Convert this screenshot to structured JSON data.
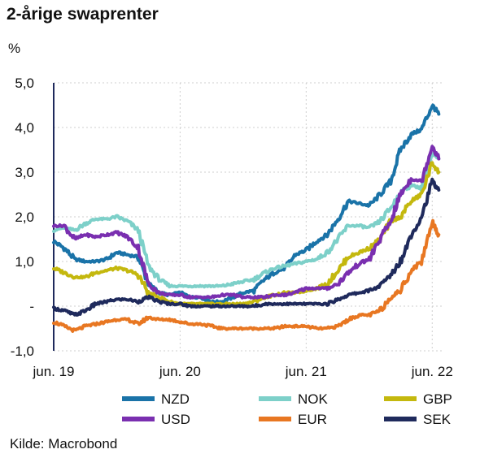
{
  "title": "2-årige swaprenter",
  "source": "Kilde: Macrobond",
  "chart_data": {
    "type": "line",
    "title": "2-årige swaprenter",
    "ylabel": "%",
    "ylim": [
      -1.0,
      5.0
    ],
    "y_ticks": [
      {
        "value": 5.0,
        "label": "5,0"
      },
      {
        "value": 4.0,
        "label": "4,0"
      },
      {
        "value": 3.0,
        "label": "3,0"
      },
      {
        "value": 2.0,
        "label": "2,0"
      },
      {
        "value": 1.0,
        "label": "1,0"
      },
      {
        "value": 0.0,
        "label": "-"
      },
      {
        "value": -1.0,
        "label": "-1,0"
      }
    ],
    "xlim": [
      "2019-06",
      "2022-07"
    ],
    "x_ticks": [
      "jun. 19",
      "jun. 20",
      "jun. 21",
      "jun. 22"
    ],
    "x_tick_dates": [
      "2019-06",
      "2020-06",
      "2021-06",
      "2022-06"
    ],
    "legend_position": "bottom",
    "series": [
      {
        "name": "NZD",
        "color": "#1a73a8",
        "points": [
          [
            "2019-06",
            1.45
          ],
          [
            "2019-07",
            1.3
          ],
          [
            "2019-08",
            1.05
          ],
          [
            "2019-09",
            1.0
          ],
          [
            "2019-10",
            1.0
          ],
          [
            "2019-11",
            1.05
          ],
          [
            "2019-12",
            1.2
          ],
          [
            "2020-01",
            1.15
          ],
          [
            "2020-02",
            1.1
          ],
          [
            "2020-03",
            0.5
          ],
          [
            "2020-04",
            0.3
          ],
          [
            "2020-05",
            0.25
          ],
          [
            "2020-06",
            0.3
          ],
          [
            "2020-07",
            0.2
          ],
          [
            "2020-08",
            0.2
          ],
          [
            "2020-09",
            0.1
          ],
          [
            "2020-10",
            0.1
          ],
          [
            "2020-11",
            0.2
          ],
          [
            "2020-12",
            0.3
          ],
          [
            "2021-01",
            0.35
          ],
          [
            "2021-02",
            0.6
          ],
          [
            "2021-03",
            0.75
          ],
          [
            "2021-04",
            0.85
          ],
          [
            "2021-05",
            1.15
          ],
          [
            "2021-06",
            1.25
          ],
          [
            "2021-07",
            1.45
          ],
          [
            "2021-08",
            1.6
          ],
          [
            "2021-09",
            1.95
          ],
          [
            "2021-10",
            2.35
          ],
          [
            "2021-11",
            2.3
          ],
          [
            "2021-12",
            2.25
          ],
          [
            "2022-01",
            2.5
          ],
          [
            "2022-02",
            2.8
          ],
          [
            "2022-03",
            3.5
          ],
          [
            "2022-04",
            3.85
          ],
          [
            "2022-05",
            3.95
          ],
          [
            "2022-06",
            4.5
          ],
          [
            "2022-06-20",
            4.3
          ]
        ]
      },
      {
        "name": "NOK",
        "color": "#7dd0c9",
        "points": [
          [
            "2019-06",
            1.7
          ],
          [
            "2019-07",
            1.75
          ],
          [
            "2019-08",
            1.7
          ],
          [
            "2019-09",
            1.85
          ],
          [
            "2019-10",
            1.95
          ],
          [
            "2019-11",
            1.95
          ],
          [
            "2019-12",
            2.0
          ],
          [
            "2020-01",
            1.9
          ],
          [
            "2020-02",
            1.7
          ],
          [
            "2020-03",
            0.9
          ],
          [
            "2020-04",
            0.6
          ],
          [
            "2020-05",
            0.45
          ],
          [
            "2020-06",
            0.45
          ],
          [
            "2020-07",
            0.45
          ],
          [
            "2020-08",
            0.45
          ],
          [
            "2020-09",
            0.45
          ],
          [
            "2020-10",
            0.45
          ],
          [
            "2020-11",
            0.5
          ],
          [
            "2020-12",
            0.55
          ],
          [
            "2021-01",
            0.6
          ],
          [
            "2021-02",
            0.75
          ],
          [
            "2021-03",
            0.85
          ],
          [
            "2021-04",
            0.9
          ],
          [
            "2021-05",
            0.95
          ],
          [
            "2021-06",
            1.0
          ],
          [
            "2021-07",
            1.05
          ],
          [
            "2021-08",
            1.2
          ],
          [
            "2021-09",
            1.5
          ],
          [
            "2021-10",
            1.8
          ],
          [
            "2021-11",
            1.8
          ],
          [
            "2021-12",
            1.75
          ],
          [
            "2022-01",
            1.9
          ],
          [
            "2022-02",
            2.2
          ],
          [
            "2022-03",
            2.55
          ],
          [
            "2022-04",
            2.7
          ],
          [
            "2022-05",
            2.65
          ],
          [
            "2022-06",
            3.4
          ],
          [
            "2022-06-20",
            3.3
          ]
        ]
      },
      {
        "name": "GBP",
        "color": "#c4b80e",
        "points": [
          [
            "2019-06",
            0.85
          ],
          [
            "2019-07",
            0.75
          ],
          [
            "2019-08",
            0.65
          ],
          [
            "2019-09",
            0.65
          ],
          [
            "2019-10",
            0.75
          ],
          [
            "2019-11",
            0.8
          ],
          [
            "2019-12",
            0.85
          ],
          [
            "2020-01",
            0.8
          ],
          [
            "2020-02",
            0.7
          ],
          [
            "2020-03",
            0.3
          ],
          [
            "2020-04",
            0.2
          ],
          [
            "2020-05",
            0.1
          ],
          [
            "2020-06",
            0.05
          ],
          [
            "2020-07",
            0.05
          ],
          [
            "2020-08",
            0.05
          ],
          [
            "2020-09",
            0.05
          ],
          [
            "2020-10",
            0.05
          ],
          [
            "2020-11",
            0.05
          ],
          [
            "2020-12",
            0.05
          ],
          [
            "2021-01",
            0.1
          ],
          [
            "2021-02",
            0.2
          ],
          [
            "2021-03",
            0.25
          ],
          [
            "2021-04",
            0.3
          ],
          [
            "2021-05",
            0.3
          ],
          [
            "2021-06",
            0.35
          ],
          [
            "2021-07",
            0.4
          ],
          [
            "2021-08",
            0.5
          ],
          [
            "2021-09",
            0.8
          ],
          [
            "2021-10",
            1.1
          ],
          [
            "2021-11",
            1.2
          ],
          [
            "2021-12",
            1.3
          ],
          [
            "2022-01",
            1.5
          ],
          [
            "2022-02",
            1.9
          ],
          [
            "2022-03",
            2.0
          ],
          [
            "2022-04",
            2.35
          ],
          [
            "2022-05",
            2.5
          ],
          [
            "2022-06",
            3.2
          ],
          [
            "2022-06-20",
            3.0
          ]
        ]
      },
      {
        "name": "USD",
        "color": "#7a2fb0",
        "points": [
          [
            "2019-06",
            1.8
          ],
          [
            "2019-07",
            1.8
          ],
          [
            "2019-08",
            1.5
          ],
          [
            "2019-09",
            1.6
          ],
          [
            "2019-10",
            1.55
          ],
          [
            "2019-11",
            1.6
          ],
          [
            "2019-12",
            1.65
          ],
          [
            "2020-01",
            1.55
          ],
          [
            "2020-02",
            1.3
          ],
          [
            "2020-03",
            0.5
          ],
          [
            "2020-04",
            0.3
          ],
          [
            "2020-05",
            0.25
          ],
          [
            "2020-06",
            0.25
          ],
          [
            "2020-07",
            0.2
          ],
          [
            "2020-08",
            0.2
          ],
          [
            "2020-09",
            0.2
          ],
          [
            "2020-10",
            0.25
          ],
          [
            "2020-11",
            0.25
          ],
          [
            "2020-12",
            0.2
          ],
          [
            "2021-01",
            0.2
          ],
          [
            "2021-02",
            0.2
          ],
          [
            "2021-03",
            0.25
          ],
          [
            "2021-04",
            0.25
          ],
          [
            "2021-05",
            0.3
          ],
          [
            "2021-06",
            0.4
          ],
          [
            "2021-07",
            0.4
          ],
          [
            "2021-08",
            0.4
          ],
          [
            "2021-09",
            0.5
          ],
          [
            "2021-10",
            0.75
          ],
          [
            "2021-11",
            0.95
          ],
          [
            "2021-12",
            1.05
          ],
          [
            "2022-01",
            1.5
          ],
          [
            "2022-02",
            1.9
          ],
          [
            "2022-03",
            2.5
          ],
          [
            "2022-04",
            2.85
          ],
          [
            "2022-05",
            2.8
          ],
          [
            "2022-06",
            3.6
          ],
          [
            "2022-06-20",
            3.3
          ]
        ]
      },
      {
        "name": "EUR",
        "color": "#e87722",
        "points": [
          [
            "2019-06",
            -0.35
          ],
          [
            "2019-07",
            -0.45
          ],
          [
            "2019-08",
            -0.55
          ],
          [
            "2019-09",
            -0.45
          ],
          [
            "2019-10",
            -0.4
          ],
          [
            "2019-11",
            -0.35
          ],
          [
            "2019-12",
            -0.3
          ],
          [
            "2020-01",
            -0.3
          ],
          [
            "2020-02",
            -0.4
          ],
          [
            "2020-03",
            -0.25
          ],
          [
            "2020-04",
            -0.3
          ],
          [
            "2020-05",
            -0.3
          ],
          [
            "2020-06",
            -0.35
          ],
          [
            "2020-07",
            -0.4
          ],
          [
            "2020-08",
            -0.4
          ],
          [
            "2020-09",
            -0.45
          ],
          [
            "2020-10",
            -0.5
          ],
          [
            "2020-11",
            -0.5
          ],
          [
            "2020-12",
            -0.5
          ],
          [
            "2021-01",
            -0.5
          ],
          [
            "2021-02",
            -0.5
          ],
          [
            "2021-03",
            -0.5
          ],
          [
            "2021-04",
            -0.45
          ],
          [
            "2021-05",
            -0.45
          ],
          [
            "2021-06",
            -0.45
          ],
          [
            "2021-07",
            -0.5
          ],
          [
            "2021-08",
            -0.5
          ],
          [
            "2021-09",
            -0.45
          ],
          [
            "2021-10",
            -0.3
          ],
          [
            "2021-11",
            -0.2
          ],
          [
            "2021-12",
            -0.2
          ],
          [
            "2022-01",
            -0.1
          ],
          [
            "2022-02",
            0.2
          ],
          [
            "2022-03",
            0.35
          ],
          [
            "2022-04",
            0.8
          ],
          [
            "2022-05",
            1.0
          ],
          [
            "2022-06",
            1.9
          ],
          [
            "2022-06-20",
            1.6
          ]
        ]
      },
      {
        "name": "SEK",
        "color": "#1f2a5c",
        "points": [
          [
            "2019-06",
            -0.05
          ],
          [
            "2019-07",
            -0.1
          ],
          [
            "2019-08",
            -0.2
          ],
          [
            "2019-09",
            -0.1
          ],
          [
            "2019-10",
            0.05
          ],
          [
            "2019-11",
            0.1
          ],
          [
            "2019-12",
            0.15
          ],
          [
            "2020-01",
            0.15
          ],
          [
            "2020-02",
            0.1
          ],
          [
            "2020-03",
            0.2
          ],
          [
            "2020-04",
            0.1
          ],
          [
            "2020-05",
            0.05
          ],
          [
            "2020-06",
            0.05
          ],
          [
            "2020-07",
            0.0
          ],
          [
            "2020-08",
            0.0
          ],
          [
            "2020-09",
            0.0
          ],
          [
            "2020-10",
            0.0
          ],
          [
            "2020-11",
            0.0
          ],
          [
            "2020-12",
            0.0
          ],
          [
            "2021-01",
            0.0
          ],
          [
            "2021-02",
            0.05
          ],
          [
            "2021-03",
            0.05
          ],
          [
            "2021-04",
            0.05
          ],
          [
            "2021-05",
            0.05
          ],
          [
            "2021-06",
            0.05
          ],
          [
            "2021-07",
            0.05
          ],
          [
            "2021-08",
            0.05
          ],
          [
            "2021-09",
            0.15
          ],
          [
            "2021-10",
            0.25
          ],
          [
            "2021-11",
            0.3
          ],
          [
            "2021-12",
            0.35
          ],
          [
            "2022-01",
            0.45
          ],
          [
            "2022-02",
            0.7
          ],
          [
            "2022-03",
            1.0
          ],
          [
            "2022-04",
            1.6
          ],
          [
            "2022-05",
            2.0
          ],
          [
            "2022-06",
            2.8
          ],
          [
            "2022-06-20",
            2.6
          ]
        ]
      }
    ]
  }
}
